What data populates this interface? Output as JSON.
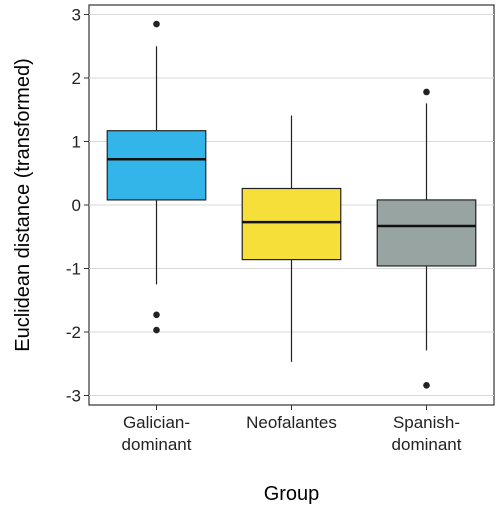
{
  "chart_data": {
    "type": "boxplot",
    "xlabel": "Group",
    "ylabel": "Euclidean distance (transformed)",
    "ylim": [
      -3.15,
      3.15
    ],
    "yticks": [
      -3,
      -2,
      -1,
      0,
      1,
      2,
      3
    ],
    "grid": "horizontal",
    "legend": "none",
    "categories": [
      [
        "Galician-",
        "dominant"
      ],
      [
        "Neofalantes"
      ],
      [
        "Spanish-",
        "dominant"
      ]
    ],
    "boxes": [
      {
        "color": "#33b5ea",
        "whisker_low": -1.25,
        "q1": 0.08,
        "median": 0.72,
        "q3": 1.17,
        "whisker_high": 2.5,
        "outliers": [
          2.85,
          -1.73,
          -1.97
        ]
      },
      {
        "color": "#f7df3a",
        "whisker_low": -2.47,
        "q1": -0.86,
        "median": -0.27,
        "q3": 0.26,
        "whisker_high": 1.41,
        "outliers": []
      },
      {
        "color": "#98a4a2",
        "whisker_low": -2.29,
        "q1": -0.96,
        "median": -0.33,
        "q3": 0.08,
        "whisker_high": 1.6,
        "outliers": [
          1.78,
          -2.84
        ]
      }
    ]
  }
}
